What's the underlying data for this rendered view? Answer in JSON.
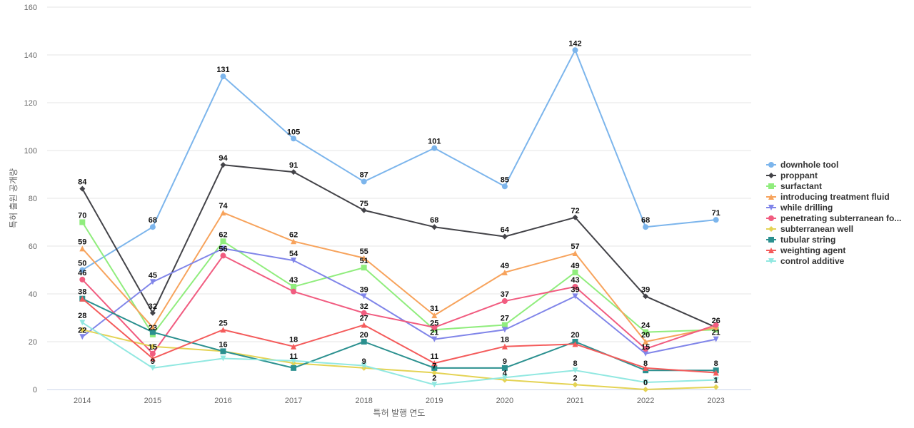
{
  "chart_data": {
    "type": "line",
    "title": "",
    "xlabel": "특허 발행 연도",
    "ylabel": "특허 출원 공개량",
    "x": [
      "2014",
      "2015",
      "2016",
      "2017",
      "2018",
      "2019",
      "2020",
      "2021",
      "2022",
      "2023"
    ],
    "ylim": [
      0,
      160
    ],
    "yticks": [
      0,
      20,
      40,
      60,
      80,
      100,
      120,
      140,
      160
    ],
    "grid": true,
    "legend_position": "right",
    "series": [
      {
        "name": "downhole tool",
        "color": "#7cb5ec",
        "marker": "circle",
        "values": [
          50,
          68,
          131,
          105,
          87,
          101,
          85,
          142,
          68,
          71
        ]
      },
      {
        "name": "proppant",
        "color": "#434348",
        "marker": "diamond",
        "values": [
          84,
          32,
          94,
          91,
          75,
          68,
          64,
          72,
          39,
          26
        ]
      },
      {
        "name": "surfactant",
        "color": "#90ed7d",
        "marker": "square",
        "values": [
          70,
          23,
          62,
          43,
          51,
          25,
          27,
          49,
          24,
          25
        ]
      },
      {
        "name": "introducing treatment fluid",
        "color": "#f7a35c",
        "marker": "triangle",
        "values": [
          59,
          26,
          74,
          62,
          55,
          31,
          49,
          57,
          20,
          26
        ]
      },
      {
        "name": "while drilling",
        "color": "#8085e9",
        "marker": "triangle-down",
        "values": [
          22,
          45,
          59,
          54,
          39,
          21,
          25,
          39,
          15,
          21
        ]
      },
      {
        "name": "penetrating subterranean fo...",
        "color": "#f15c80",
        "marker": "circle",
        "values": [
          46,
          15,
          56,
          41,
          32,
          26,
          37,
          43,
          17,
          27
        ]
      },
      {
        "name": "subterranean well",
        "color": "#e4d354",
        "marker": "diamond",
        "values": [
          25,
          18,
          16,
          11,
          9,
          7,
          4,
          2,
          0,
          1
        ]
      },
      {
        "name": "tubular string",
        "color": "#2b908f",
        "marker": "square",
        "values": [
          38,
          24,
          16,
          9,
          20,
          9,
          9,
          20,
          8,
          8
        ]
      },
      {
        "name": "weighting agent",
        "color": "#f45b5b",
        "marker": "triangle",
        "values": [
          38,
          13,
          25,
          18,
          27,
          11,
          18,
          19,
          9,
          7
        ]
      },
      {
        "name": "control additive",
        "color": "#91e8e1",
        "marker": "triangle-down",
        "values": [
          28,
          9,
          13,
          12,
          10,
          2,
          5,
          8,
          3,
          4
        ]
      }
    ],
    "data_labels": [
      {
        "label": "84",
        "x": "2014",
        "y": 84
      },
      {
        "label": "70",
        "x": "2014",
        "y": 70
      },
      {
        "label": "59",
        "x": "2014",
        "y": 59
      },
      {
        "label": "50",
        "x": "2014",
        "y": 50
      },
      {
        "label": "46",
        "x": "2014",
        "y": 46
      },
      {
        "label": "38",
        "x": "2014",
        "y": 38
      },
      {
        "label": "28",
        "x": "2014",
        "y": 28
      },
      {
        "label": "22",
        "x": "2014",
        "y": 22
      },
      {
        "label": "68",
        "x": "2015",
        "y": 68
      },
      {
        "label": "45",
        "x": "2015",
        "y": 45
      },
      {
        "label": "32",
        "x": "2015",
        "y": 32
      },
      {
        "label": "23",
        "x": "2015",
        "y": 23
      },
      {
        "label": "15",
        "x": "2015",
        "y": 15
      },
      {
        "label": "9",
        "x": "2015",
        "y": 9
      },
      {
        "label": "131",
        "x": "2016",
        "y": 131
      },
      {
        "label": "94",
        "x": "2016",
        "y": 94
      },
      {
        "label": "74",
        "x": "2016",
        "y": 74
      },
      {
        "label": "62",
        "x": "2016",
        "y": 62
      },
      {
        "label": "56",
        "x": "2016",
        "y": 56
      },
      {
        "label": "25",
        "x": "2016",
        "y": 25
      },
      {
        "label": "16",
        "x": "2016",
        "y": 16
      },
      {
        "label": "105",
        "x": "2017",
        "y": 105
      },
      {
        "label": "91",
        "x": "2017",
        "y": 91
      },
      {
        "label": "62",
        "x": "2017",
        "y": 62
      },
      {
        "label": "54",
        "x": "2017",
        "y": 54
      },
      {
        "label": "43",
        "x": "2017",
        "y": 43
      },
      {
        "label": "18",
        "x": "2017",
        "y": 18
      },
      {
        "label": "11",
        "x": "2017",
        "y": 11
      },
      {
        "label": "87",
        "x": "2018",
        "y": 87
      },
      {
        "label": "75",
        "x": "2018",
        "y": 75
      },
      {
        "label": "55",
        "x": "2018",
        "y": 55
      },
      {
        "label": "51",
        "x": "2018",
        "y": 51
      },
      {
        "label": "39",
        "x": "2018",
        "y": 39
      },
      {
        "label": "32",
        "x": "2018",
        "y": 32
      },
      {
        "label": "27",
        "x": "2018",
        "y": 27
      },
      {
        "label": "20",
        "x": "2018",
        "y": 20
      },
      {
        "label": "9",
        "x": "2018",
        "y": 9
      },
      {
        "label": "101",
        "x": "2019",
        "y": 101
      },
      {
        "label": "68",
        "x": "2019",
        "y": 68
      },
      {
        "label": "31",
        "x": "2019",
        "y": 31
      },
      {
        "label": "25",
        "x": "2019",
        "y": 25
      },
      {
        "label": "21",
        "x": "2019",
        "y": 21
      },
      {
        "label": "11",
        "x": "2019",
        "y": 11
      },
      {
        "label": "7",
        "x": "2019",
        "y": 7
      },
      {
        "label": "2",
        "x": "2019",
        "y": 2
      },
      {
        "label": "85",
        "x": "2020",
        "y": 85
      },
      {
        "label": "64",
        "x": "2020",
        "y": 64
      },
      {
        "label": "49",
        "x": "2020",
        "y": 49
      },
      {
        "label": "37",
        "x": "2020",
        "y": 37
      },
      {
        "label": "27",
        "x": "2020",
        "y": 27
      },
      {
        "label": "18",
        "x": "2020",
        "y": 18
      },
      {
        "label": "9",
        "x": "2020",
        "y": 9
      },
      {
        "label": "4",
        "x": "2020",
        "y": 4
      },
      {
        "label": "142",
        "x": "2021",
        "y": 142
      },
      {
        "label": "72",
        "x": "2021",
        "y": 72
      },
      {
        "label": "57",
        "x": "2021",
        "y": 57
      },
      {
        "label": "49",
        "x": "2021",
        "y": 49
      },
      {
        "label": "43",
        "x": "2021",
        "y": 43
      },
      {
        "label": "39",
        "x": "2021",
        "y": 39
      },
      {
        "label": "20",
        "x": "2021",
        "y": 20
      },
      {
        "label": "8",
        "x": "2021",
        "y": 8
      },
      {
        "label": "2",
        "x": "2021",
        "y": 2
      },
      {
        "label": "68",
        "x": "2022",
        "y": 68
      },
      {
        "label": "39",
        "x": "2022",
        "y": 39
      },
      {
        "label": "24",
        "x": "2022",
        "y": 24
      },
      {
        "label": "20",
        "x": "2022",
        "y": 20
      },
      {
        "label": "15",
        "x": "2022",
        "y": 15
      },
      {
        "label": "8",
        "x": "2022",
        "y": 8
      },
      {
        "label": "0",
        "x": "2022",
        "y": 0
      },
      {
        "label": "71",
        "x": "2023",
        "y": 71
      },
      {
        "label": "26",
        "x": "2023",
        "y": 26
      },
      {
        "label": "21",
        "x": "2023",
        "y": 21
      },
      {
        "label": "8",
        "x": "2023",
        "y": 8
      },
      {
        "label": "1",
        "x": "2023",
        "y": 1
      }
    ]
  }
}
